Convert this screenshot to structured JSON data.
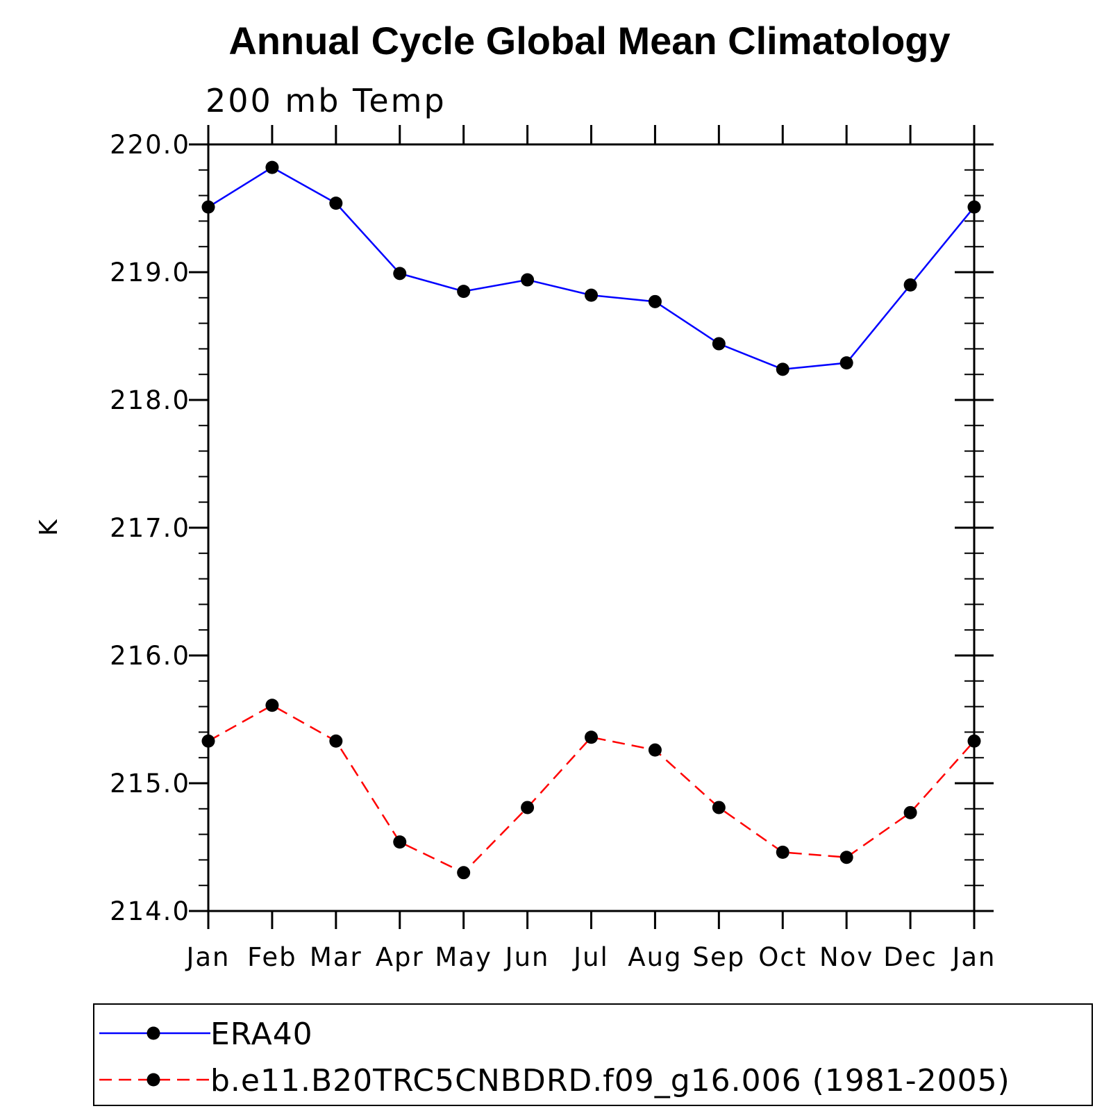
{
  "chart_data": {
    "type": "line",
    "title": "Annual Cycle Global Mean Climatology",
    "subtitle": "200 mb Temp",
    "xlabel": "",
    "ylabel": "K",
    "categories": [
      "Jan",
      "Feb",
      "Mar",
      "Apr",
      "May",
      "Jun",
      "Jul",
      "Aug",
      "Sep",
      "Oct",
      "Nov",
      "Dec",
      "Jan"
    ],
    "ylim": [
      214.0,
      220.0
    ],
    "yticks": [
      214.0,
      215.0,
      216.0,
      217.0,
      218.0,
      219.0,
      220.0
    ],
    "ytick_labels": [
      "214.0",
      "215.0",
      "216.0",
      "217.0",
      "218.0",
      "219.0",
      "220.0"
    ],
    "y_minor_step": 0.2,
    "grid": false,
    "legend_position": "bottom",
    "series": [
      {
        "name": "ERA40",
        "color": "#0000ff",
        "line_style": "solid",
        "marker": "filled-circle",
        "values": [
          219.51,
          219.82,
          219.54,
          218.99,
          218.85,
          218.94,
          218.82,
          218.77,
          218.44,
          218.24,
          218.29,
          218.9,
          219.51
        ]
      },
      {
        "name": "b.e11.B20TRC5CNBDRD.f09_g16.006 (1981-2005)",
        "color": "#ff0000",
        "line_style": "dashed",
        "marker": "filled-circle",
        "values": [
          215.33,
          215.61,
          215.33,
          214.54,
          214.3,
          214.81,
          215.36,
          215.26,
          214.81,
          214.46,
          214.42,
          214.77,
          215.33
        ]
      }
    ]
  }
}
